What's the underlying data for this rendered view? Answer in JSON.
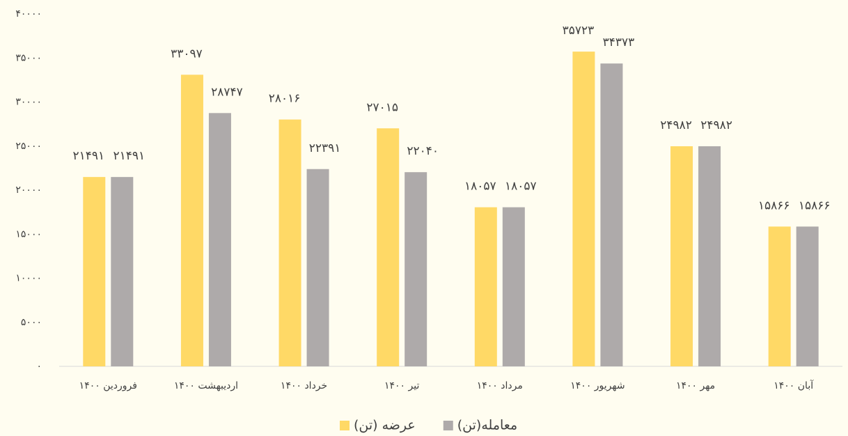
{
  "chart_data": {
    "type": "bar",
    "categories": [
      "فروردین ۱۴۰۰",
      "اردیبهشت ۱۴۰۰",
      "خرداد ۱۴۰۰",
      "تیر ۱۴۰۰",
      "مرداد ۱۴۰۰",
      "شهریور ۱۴۰۰",
      "مهر ۱۴۰۰",
      "آبان ۱۴۰۰"
    ],
    "series": [
      {
        "name": "عرضه (تن)",
        "color": "#ffd966",
        "values": [
          21491,
          33097,
          28016,
          27015,
          18057,
          35723,
          24982,
          15866
        ],
        "value_labels": [
          "۲۱۴۹۱",
          "۳۳۰۹۷",
          "۲۸۰۱۶",
          "۲۷۰۱۵",
          "۱۸۰۵۷",
          "۳۵۷۲۳",
          "۲۴۹۸۲",
          "۱۵۸۶۶"
        ]
      },
      {
        "name": "معامله(تن)",
        "color": "#aeaaaa",
        "values": [
          21491,
          28747,
          22391,
          22040,
          18057,
          34373,
          24982,
          15866
        ],
        "value_labels": [
          "۲۱۴۹۱",
          "۲۸۷۴۷",
          "۲۲۳۹۱",
          "۲۲۰۴۰",
          "۱۸۰۵۷",
          "۳۴۳۷۳",
          "۲۴۹۸۲",
          "۱۵۸۶۶"
        ]
      }
    ],
    "ylim": [
      0,
      40000
    ],
    "yticks": [
      {
        "value": 0,
        "label": "۰"
      },
      {
        "value": 5000,
        "label": "۵۰۰۰"
      },
      {
        "value": 10000,
        "label": "۱۰۰۰۰"
      },
      {
        "value": 15000,
        "label": "۱۵۰۰۰"
      },
      {
        "value": 20000,
        "label": "۲۰۰۰۰"
      },
      {
        "value": 25000,
        "label": "۲۵۰۰۰"
      },
      {
        "value": 30000,
        "label": "۳۰۰۰۰"
      },
      {
        "value": 35000,
        "label": "۳۵۰۰۰"
      },
      {
        "value": 40000,
        "label": "۴۰۰۰۰"
      }
    ],
    "grid": false,
    "legend": "bottom"
  }
}
